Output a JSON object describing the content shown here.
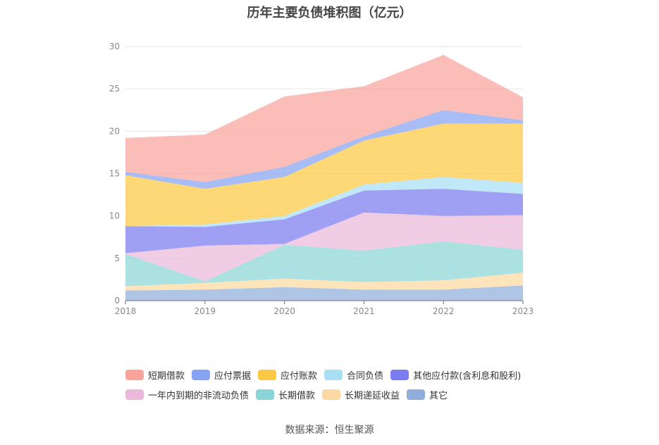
{
  "chart_data": {
    "type": "area",
    "title": "历年主要负债堆积图（亿元）",
    "stacked": true,
    "categories": [
      "2018",
      "2019",
      "2020",
      "2021",
      "2022",
      "2023"
    ],
    "y_ticks": [
      "0",
      "5",
      "10",
      "15",
      "20",
      "25",
      "30"
    ],
    "ylim": [
      0,
      30
    ],
    "grid": true,
    "legend_position": "bottom",
    "series": [
      {
        "name": "其它",
        "color": "#8faedb",
        "values": [
          1.2,
          1.3,
          1.6,
          1.3,
          1.3,
          1.8
        ]
      },
      {
        "name": "长期递延收益",
        "color": "#fcd9a1",
        "values": [
          0.5,
          0.8,
          1.0,
          0.9,
          1.1,
          1.5
        ]
      },
      {
        "name": "长期借款",
        "color": "#8ad6d6",
        "values": [
          3.8,
          0.2,
          4.0,
          3.7,
          4.6,
          2.7
        ]
      },
      {
        "name": "一年内到期的非流动负债",
        "color": "#ecb8db",
        "values": [
          0.1,
          4.2,
          0.1,
          4.5,
          3.0,
          4.1
        ]
      },
      {
        "name": "其他应付款(含利息和股利)",
        "color": "#7a7cf0",
        "values": [
          3.2,
          2.2,
          2.9,
          2.6,
          3.2,
          2.5
        ]
      },
      {
        "name": "合同负债",
        "color": "#a8dff5",
        "values": [
          0.0,
          0.3,
          0.4,
          0.7,
          1.4,
          1.3
        ]
      },
      {
        "name": "应付账款",
        "color": "#fdc842",
        "values": [
          6.0,
          4.2,
          4.6,
          5.2,
          6.3,
          7.0
        ]
      },
      {
        "name": "应付票据",
        "color": "#87a3f3",
        "values": [
          0.4,
          0.8,
          1.2,
          0.5,
          1.6,
          0.4
        ]
      },
      {
        "name": "短期借款",
        "color": "#f9a39b",
        "values": [
          4.0,
          5.6,
          8.3,
          5.9,
          6.5,
          2.7
        ]
      }
    ],
    "legend_order": [
      [
        "短期借款",
        "应付票据",
        "应付账款",
        "合同负债",
        "其他应付款(含利息和股利)"
      ],
      [
        "一年内到期的非流动负债",
        "长期借款",
        "长期递延收益",
        "其它"
      ]
    ]
  },
  "source_text": "数据来源：恒生聚源"
}
